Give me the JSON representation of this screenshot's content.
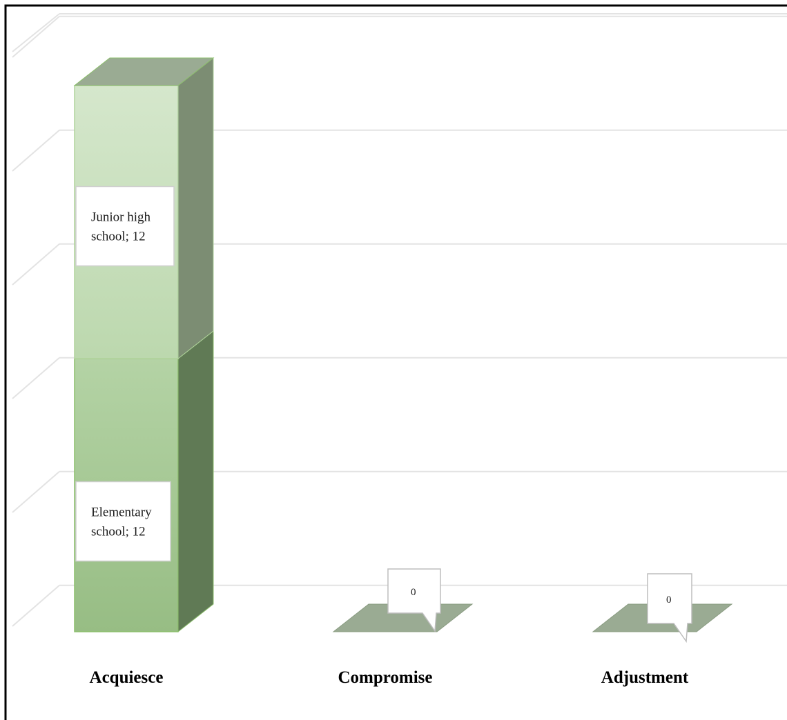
{
  "chart_data": {
    "type": "bar",
    "stacked": true,
    "three_d": true,
    "categories": [
      "Acquiesce",
      "Compromise",
      "Adjustment"
    ],
    "series": [
      {
        "name": "Elementary school",
        "values": [
          12,
          0,
          0
        ],
        "color": "#9cc28a"
      },
      {
        "name": "Junior high school",
        "values": [
          12,
          0,
          0
        ],
        "color": "#c6ddba"
      }
    ],
    "data_labels": [
      {
        "category": "Acquiesce",
        "series": "Elementary school",
        "lines": [
          "Elementary",
          "school; 12"
        ]
      },
      {
        "category": "Acquiesce",
        "series": "Junior high school",
        "lines": [
          "Junior high",
          "school; 12"
        ]
      },
      {
        "category": "Compromise",
        "series": "",
        "lines": [
          "0"
        ]
      },
      {
        "category": "Adjustment",
        "series": "",
        "lines": [
          "0"
        ]
      }
    ],
    "ylim": [
      0,
      25
    ],
    "grid": true,
    "legend": "none",
    "colors": {
      "gridline": "#e3e3e3",
      "floor": "#9aab93",
      "side_dark": "#607a55",
      "side_light": "#7c8d73",
      "top": "#9aab93",
      "border": "#000000"
    }
  }
}
